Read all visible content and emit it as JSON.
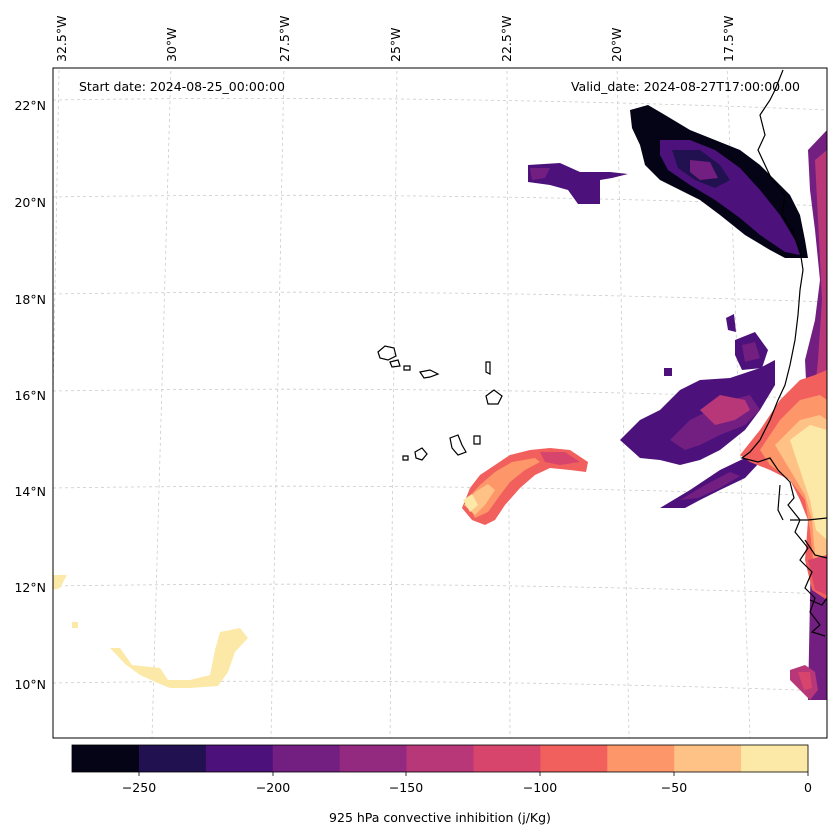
{
  "map": {
    "start_date": "Start date: 2024-08-25_00:00:00",
    "valid_date": "Valid_date: 2024-08-27T17:00:00.00",
    "lon_labels": [
      "32.5°W",
      "30°W",
      "27.5°W",
      "25°W",
      "22.5°W",
      "20°W",
      "17.5°W"
    ],
    "lat_labels": [
      "22°N",
      "20°N",
      "18°N",
      "16°N",
      "14°N",
      "12°N",
      "10°N"
    ]
  },
  "colorbar": {
    "label": "925 hPa convective inhibition (j/Kg)",
    "tick_labels": [
      "−250",
      "−200",
      "−150",
      "−100",
      "−50",
      "0"
    ],
    "levels": [
      -275,
      -250,
      -225,
      -200,
      -175,
      -150,
      -125,
      -100,
      -75,
      -50,
      -25,
      0
    ],
    "colors": [
      "#050416",
      "#221150",
      "#4c117a",
      "#721f81",
      "#932a7f",
      "#b73779",
      "#d8456c",
      "#f1605d",
      "#fd9668",
      "#fec287",
      "#fce9a8"
    ]
  },
  "chart_data": {
    "type": "heatmap",
    "title": "",
    "variable": "925 hPa convective inhibition (j/Kg)",
    "colormap": "magma",
    "value_range": [
      -275,
      0
    ],
    "lon_range_deg": [
      -33,
      -16
    ],
    "lat_range_deg": [
      9,
      22.8
    ],
    "grid": true,
    "projection": "conic"
  }
}
